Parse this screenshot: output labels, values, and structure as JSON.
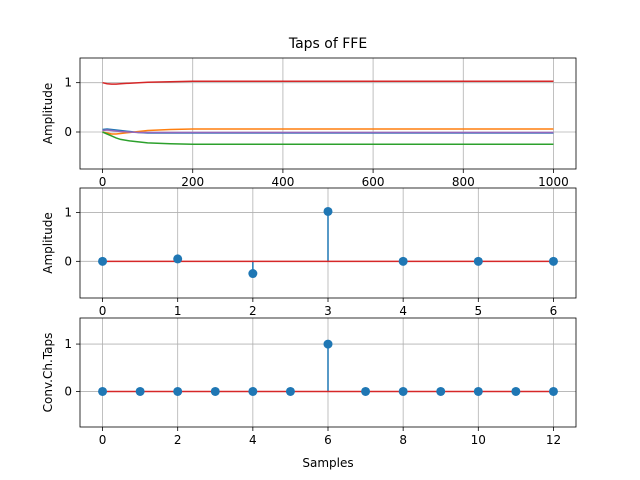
{
  "chart_data": [
    {
      "type": "line",
      "title": "Taps of FFE",
      "xlabel": "",
      "ylabel": "Amplitude",
      "xlim": [
        -50,
        1050
      ],
      "ylim": [
        -0.75,
        1.5
      ],
      "xticks": [
        0,
        200,
        400,
        600,
        800,
        1000
      ],
      "yticks": [
        0,
        1
      ],
      "grid": true,
      "series": [
        {
          "color": "#1f77b4",
          "x": [
            0,
            10,
            20,
            30,
            40,
            60,
            80,
            100,
            150,
            200,
            300,
            500,
            1000
          ],
          "y": [
            0.05,
            0.06,
            0.05,
            0.04,
            0.03,
            0.01,
            -0.01,
            -0.02,
            -0.02,
            -0.02,
            -0.02,
            -0.02,
            -0.02
          ]
        },
        {
          "color": "#ff7f0e",
          "x": [
            0,
            10,
            20,
            30,
            40,
            60,
            80,
            100,
            150,
            200,
            300,
            500,
            1000
          ],
          "y": [
            0.0,
            -0.02,
            -0.04,
            -0.04,
            -0.03,
            -0.01,
            0.01,
            0.03,
            0.05,
            0.06,
            0.06,
            0.06,
            0.06
          ]
        },
        {
          "color": "#2ca02c",
          "x": [
            0,
            10,
            20,
            30,
            40,
            60,
            80,
            100,
            150,
            200,
            300,
            500,
            1000
          ],
          "y": [
            0.0,
            -0.04,
            -0.08,
            -0.12,
            -0.15,
            -0.18,
            -0.2,
            -0.22,
            -0.24,
            -0.25,
            -0.25,
            -0.25,
            -0.25
          ]
        },
        {
          "color": "#d62728",
          "x": [
            0,
            10,
            20,
            30,
            40,
            60,
            80,
            100,
            150,
            200,
            300,
            500,
            1000
          ],
          "y": [
            1.0,
            0.98,
            0.97,
            0.97,
            0.98,
            0.99,
            1.0,
            1.01,
            1.02,
            1.03,
            1.03,
            1.03,
            1.03
          ]
        },
        {
          "color": "#9467bd",
          "x": [
            0,
            10,
            20,
            30,
            40,
            60,
            80,
            100,
            150,
            200,
            300,
            500,
            1000
          ],
          "y": [
            0.03,
            0.04,
            0.03,
            0.02,
            0.01,
            0.0,
            -0.01,
            -0.01,
            -0.01,
            -0.01,
            -0.01,
            -0.01,
            -0.01
          ]
        }
      ]
    },
    {
      "type": "stem",
      "title": "",
      "xlabel": "",
      "ylabel": "Amplitude",
      "xlim": [
        -0.3,
        6.3
      ],
      "ylim": [
        -0.75,
        1.5
      ],
      "xticks": [
        0,
        1,
        2,
        3,
        4,
        5,
        6
      ],
      "yticks": [
        0,
        1
      ],
      "grid": true,
      "x": [
        0,
        1,
        2,
        3,
        4,
        5,
        6
      ],
      "y": [
        0.0,
        0.05,
        -0.25,
        1.02,
        0.0,
        0.0,
        0.0
      ],
      "marker_color": "#1f77b4",
      "baseline_color": "#d62728"
    },
    {
      "type": "stem",
      "title": "",
      "xlabel": "Samples",
      "ylabel": "Conv.Ch.Taps",
      "xlim": [
        -0.6,
        12.6
      ],
      "ylim": [
        -0.75,
        1.55
      ],
      "xticks": [
        0,
        2,
        4,
        6,
        8,
        10,
        12
      ],
      "yticks": [
        0,
        1
      ],
      "grid": true,
      "x": [
        0,
        1,
        2,
        3,
        4,
        5,
        6,
        7,
        8,
        9,
        10,
        11,
        12
      ],
      "y": [
        0,
        0,
        0,
        0,
        0,
        0,
        1.0,
        0,
        0,
        0,
        0,
        0,
        0
      ],
      "marker_color": "#1f77b4",
      "baseline_color": "#d62728"
    }
  ]
}
